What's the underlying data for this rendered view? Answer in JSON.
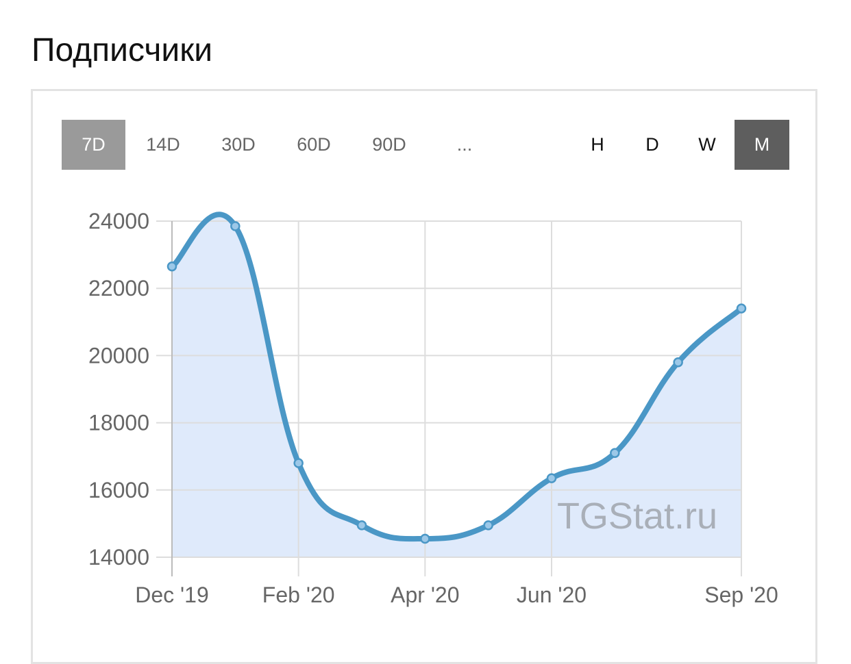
{
  "title": "Подписчики",
  "range_buttons": [
    {
      "label": "7D",
      "active": true
    },
    {
      "label": "14D",
      "active": false
    },
    {
      "label": "30D",
      "active": false
    },
    {
      "label": "60D",
      "active": false
    },
    {
      "label": "90D",
      "active": false
    },
    {
      "label": "...",
      "active": false
    }
  ],
  "granularity_buttons": [
    {
      "label": "H",
      "active": false
    },
    {
      "label": "D",
      "active": false
    },
    {
      "label": "W",
      "active": false
    },
    {
      "label": "M",
      "active": true
    }
  ],
  "watermark": "TGStat.ru",
  "colors": {
    "line": "#4a97c6",
    "fill": "#dfeafb",
    "marker_fill": "#9cc8e8",
    "grid": "#dddddd",
    "axis_text": "#666666"
  },
  "chart_data": {
    "type": "area",
    "title": "",
    "xlabel": "",
    "ylabel": "",
    "x": [
      "2019-12",
      "2020-01",
      "2020-02",
      "2020-03",
      "2020-04",
      "2020-05",
      "2020-06",
      "2020-07",
      "2020-08",
      "2020-09"
    ],
    "values": [
      22650,
      23850,
      16800,
      14950,
      14550,
      14950,
      16350,
      17100,
      19800,
      21400
    ],
    "x_tick_labels": [
      "Dec '19",
      "Feb '20",
      "Apr '20",
      "Jun '20",
      "Sep '20"
    ],
    "x_tick_positions": [
      "2019-12",
      "2020-02",
      "2020-04",
      "2020-06",
      "2020-09"
    ],
    "y_ticks": [
      14000,
      16000,
      18000,
      20000,
      22000,
      24000
    ],
    "ylim": [
      14000,
      24000
    ],
    "grid": true,
    "legend": "none"
  }
}
